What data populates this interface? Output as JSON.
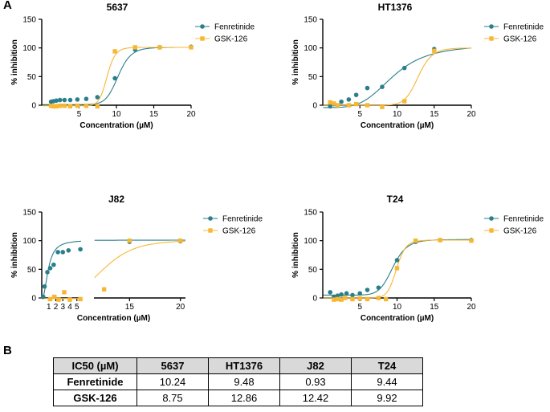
{
  "panel_labels": {
    "a": "A",
    "b": "B"
  },
  "colors": {
    "fenretinide": "#2a7f8a",
    "gsk126": "#f7b733",
    "axis": "#000000"
  },
  "chart_data": [
    {
      "type": "scatter",
      "title": "5637",
      "xlabel": "Concentration (µM)",
      "ylabel": "% inhibition",
      "xlim": [
        0,
        20
      ],
      "ylim": [
        0,
        150
      ],
      "xticks": [
        "5",
        "10",
        "15",
        "20"
      ],
      "yticks": [
        "0",
        "50",
        "100",
        "150"
      ],
      "legend": [
        "Fenretinide",
        "GSK-126"
      ],
      "series": [
        {
          "name": "Fenretinide",
          "ic50": 10.24,
          "x": [
            1.25,
            1.56,
            1.95,
            2.44,
            3.05,
            3.81,
            4.77,
            5.96,
            7.45,
            9.8,
            12.5,
            15.8,
            20
          ],
          "y": [
            6,
            7,
            8,
            9,
            9,
            9,
            10,
            11,
            14,
            47,
            97,
            101,
            102
          ]
        },
        {
          "name": "GSK-126",
          "ic50": 8.75,
          "x": [
            1.25,
            1.56,
            1.95,
            2.44,
            3.05,
            3.81,
            4.77,
            5.96,
            7.45,
            9.8,
            12.5,
            15.8,
            20
          ],
          "y": [
            -1,
            -2,
            -2,
            -1,
            -1,
            -2,
            -1,
            -1,
            -2,
            94,
            101,
            101,
            101
          ]
        }
      ]
    },
    {
      "type": "scatter",
      "title": "HT1376",
      "xlabel": "Concentration (µM)",
      "ylabel": "% inhibition",
      "xlim": [
        0,
        20
      ],
      "ylim": [
        0,
        150
      ],
      "xticks": [
        "5",
        "10",
        "15",
        "20"
      ],
      "yticks": [
        "0",
        "50",
        "100",
        "150"
      ],
      "legend": [
        "Fenretinide",
        "GSK-126"
      ],
      "series": [
        {
          "name": "Fenretinide",
          "ic50": 9.48,
          "x": [
            1.0,
            1.5,
            2.5,
            3.5,
            4.5,
            6.0,
            8.0,
            11.0,
            15.0
          ],
          "y": [
            -2,
            2,
            6,
            10,
            18,
            30,
            32,
            65,
            98
          ]
        },
        {
          "name": "GSK-126",
          "ic50": 12.86,
          "x": [
            1.0,
            1.5,
            2.0,
            3.5,
            4.5,
            6.0,
            8.0,
            11.0,
            15.0
          ],
          "y": [
            5,
            3,
            0,
            0,
            2,
            0,
            -3,
            7,
            95
          ]
        }
      ]
    },
    {
      "type": "scatter",
      "title": "J82",
      "xlabel": "Concentration (µM)",
      "ylabel": "% inhibition",
      "xlim": [
        0,
        20.5
      ],
      "ylim": [
        0,
        150
      ],
      "xticks": [
        "1",
        "2",
        "3",
        "4",
        "5",
        "15",
        "20"
      ],
      "yticks": [
        "0",
        "50",
        "100",
        "150"
      ],
      "legend": [
        "Fenretinide",
        "GSK-126"
      ],
      "series": [
        {
          "name": "Fenretinide",
          "ic50": 0.93,
          "x": [
            0.2,
            0.4,
            0.8,
            1.2,
            1.7,
            2.3,
            3.0,
            3.8,
            5.5,
            15.0,
            20.0
          ],
          "y": [
            2,
            20,
            45,
            52,
            58,
            80,
            80,
            83,
            85,
            98,
            99
          ]
        },
        {
          "name": "GSK-126",
          "ic50": 12.42,
          "x": [
            1.2,
            1.8,
            2.4,
            3.2,
            4.0,
            5.5,
            12.5,
            15.0,
            20.0
          ],
          "y": [
            -2,
            2,
            -3,
            10,
            -3,
            -2,
            15,
            100,
            100
          ]
        }
      ]
    },
    {
      "type": "scatter",
      "title": "T24",
      "xlabel": "Concentration (µM)",
      "ylabel": "% inhibition",
      "xlim": [
        0,
        20
      ],
      "ylim": [
        0,
        150
      ],
      "xticks": [
        "5",
        "10",
        "15",
        "20"
      ],
      "yticks": [
        "0",
        "50",
        "100",
        "150"
      ],
      "legend": [
        "Fenretinide",
        "GSK-126"
      ],
      "series": [
        {
          "name": "Fenretinide",
          "ic50": 9.44,
          "x": [
            1.0,
            1.5,
            2.0,
            2.5,
            3.2,
            4.0,
            5.0,
            6.0,
            7.5,
            10.0,
            12.5,
            15.8,
            20.0
          ],
          "y": [
            10,
            2,
            4,
            6,
            8,
            5,
            8,
            14,
            18,
            66,
            98,
            101,
            101
          ]
        },
        {
          "name": "GSK-126",
          "ic50": 9.92,
          "x": [
            1.5,
            2.0,
            2.5,
            3.0,
            4.0,
            5.0,
            6.0,
            7.5,
            8.5,
            10.0,
            12.5,
            15.8,
            20.0
          ],
          "y": [
            -3,
            -2,
            -3,
            0,
            -2,
            -1,
            -2,
            0,
            -2,
            52,
            100,
            101,
            100
          ]
        }
      ]
    }
  ],
  "table": {
    "headers": [
      "IC50 (µM)",
      "5637",
      "HT1376",
      "J82",
      "T24"
    ],
    "rows": [
      [
        "Fenretinide",
        "10.24",
        "9.48",
        "0.93",
        "9.44"
      ],
      [
        "GSK-126",
        "8.75",
        "12.86",
        "12.42",
        "9.92"
      ]
    ]
  }
}
